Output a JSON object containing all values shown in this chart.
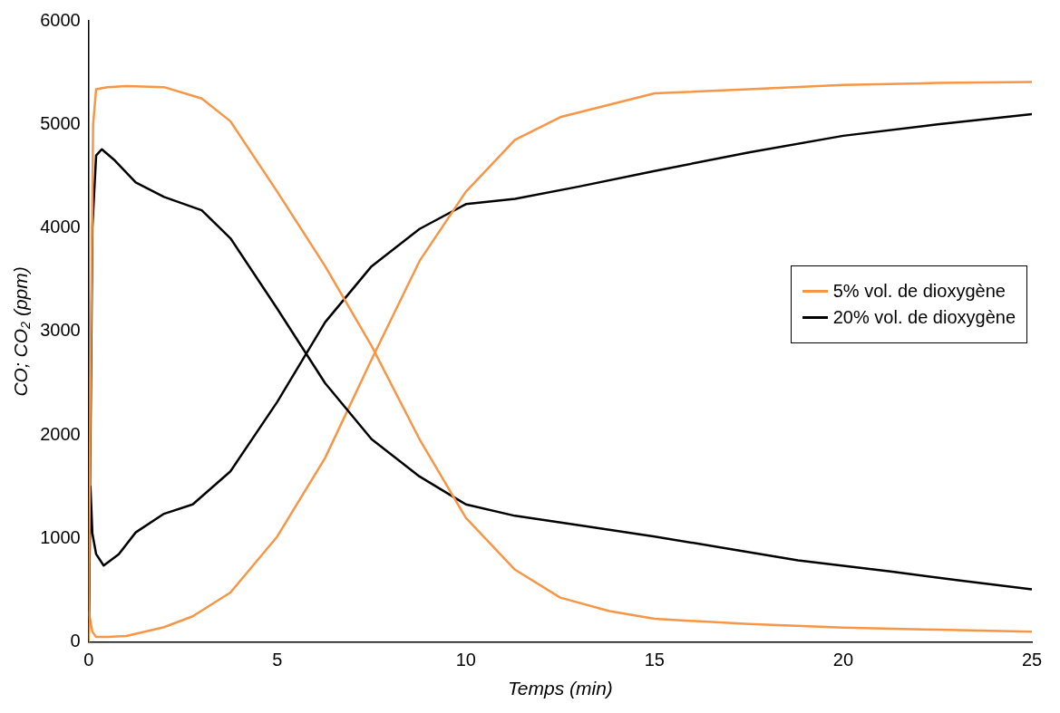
{
  "chart_data": {
    "type": "line",
    "xlabel": "Temps (min)",
    "ylabel": "CO; CO₂ (ppm)",
    "xlim": [
      0,
      25
    ],
    "xticks": [
      0,
      5,
      10,
      15,
      20,
      25
    ],
    "ylim": [
      0,
      6000
    ],
    "yticks": [
      0,
      1000,
      2000,
      3000,
      4000,
      5000,
      6000
    ],
    "grid": false,
    "legend": "right",
    "marker": "none",
    "line_style": "solid",
    "series": [
      {
        "name": "5% vol. de dioxygène",
        "color": "#f79646",
        "x": [
          0,
          0.05,
          0.12,
          0.2,
          0.5,
          1,
          2,
          3,
          3.76,
          5,
          6.27,
          7.5,
          8.77,
          10,
          11.3,
          12.5,
          13.8,
          15,
          17.5,
          20,
          22.5,
          25
        ],
        "values": [
          0,
          2500,
          5000,
          5340,
          5360,
          5370,
          5360,
          5250,
          5030,
          4350,
          3630,
          2860,
          1960,
          1200,
          700,
          430,
          300,
          225,
          175,
          140,
          120,
          100
        ]
      },
      {
        "name": "20% vol. de dioxygène",
        "color": "#000000",
        "x": [
          0,
          0.05,
          0.1,
          0.2,
          0.35,
          0.7,
          1.25,
          2,
          3,
          3.76,
          5,
          6.27,
          7.5,
          8.77,
          10,
          11.3,
          13,
          15,
          17,
          18.8,
          21.3,
          23,
          25
        ],
        "values": [
          0,
          2000,
          4000,
          4700,
          4760,
          4650,
          4440,
          4300,
          4170,
          3900,
          3220,
          2500,
          1960,
          1600,
          1330,
          1220,
          1130,
          1020,
          900,
          790,
          680,
          600,
          510
        ]
      },
      {
        "color": "#f79646",
        "x": [
          0,
          0.1,
          0.2,
          0.5,
          1,
          2,
          2.76,
          3.76,
          5,
          6.27,
          7.5,
          8.77,
          10,
          11.3,
          12.5,
          15,
          17.5,
          20,
          22.5,
          25
        ],
        "values": [
          300,
          100,
          50,
          50,
          60,
          145,
          250,
          480,
          1020,
          1780,
          2730,
          3680,
          4350,
          4850,
          5070,
          5300,
          5340,
          5380,
          5400,
          5410
        ]
      },
      {
        "color": "#000000",
        "x": [
          0,
          0.05,
          0.1,
          0.2,
          0.4,
          0.8,
          1.25,
          2,
          2.76,
          3.76,
          5,
          6.27,
          7.5,
          8.77,
          10,
          11.3,
          13,
          15,
          17.5,
          20,
          22.5,
          25
        ],
        "values": [
          0,
          1500,
          1050,
          850,
          740,
          850,
          1060,
          1240,
          1330,
          1650,
          2320,
          3090,
          3630,
          3990,
          4230,
          4280,
          4400,
          4550,
          4730,
          4890,
          5000,
          5100
        ]
      }
    ]
  }
}
